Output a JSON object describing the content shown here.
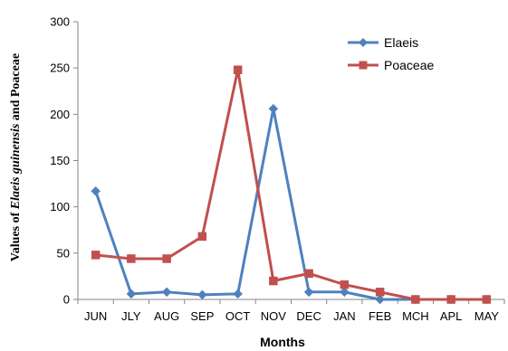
{
  "chart_data": {
    "type": "line",
    "categories": [
      "JUN",
      "JLY",
      "AUG",
      "SEP",
      "OCT",
      "NOV",
      "DEC",
      "JAN",
      "FEB",
      "MCH",
      "APL",
      "MAY"
    ],
    "series": [
      {
        "name": "Elaeis",
        "color": "#4F81BD",
        "marker": "diamond",
        "values": [
          117,
          6,
          8,
          5,
          6,
          206,
          8,
          8,
          0,
          0,
          0,
          0
        ]
      },
      {
        "name": "Poaceae",
        "color": "#C0504D",
        "marker": "square",
        "values": [
          48,
          44,
          44,
          68,
          248,
          20,
          28,
          16,
          8,
          0,
          0,
          0
        ]
      }
    ],
    "y_ticks": [
      "0",
      "50",
      "100",
      "150",
      "200",
      "250",
      "300"
    ],
    "xlabel": "Months",
    "ylabel": {
      "prefix": "Values of ",
      "italic": "Elaeis guinensis",
      "suffix": " and Poaceae"
    },
    "ylim": [
      0,
      300
    ],
    "grid": false,
    "legend_position": "top-right"
  }
}
